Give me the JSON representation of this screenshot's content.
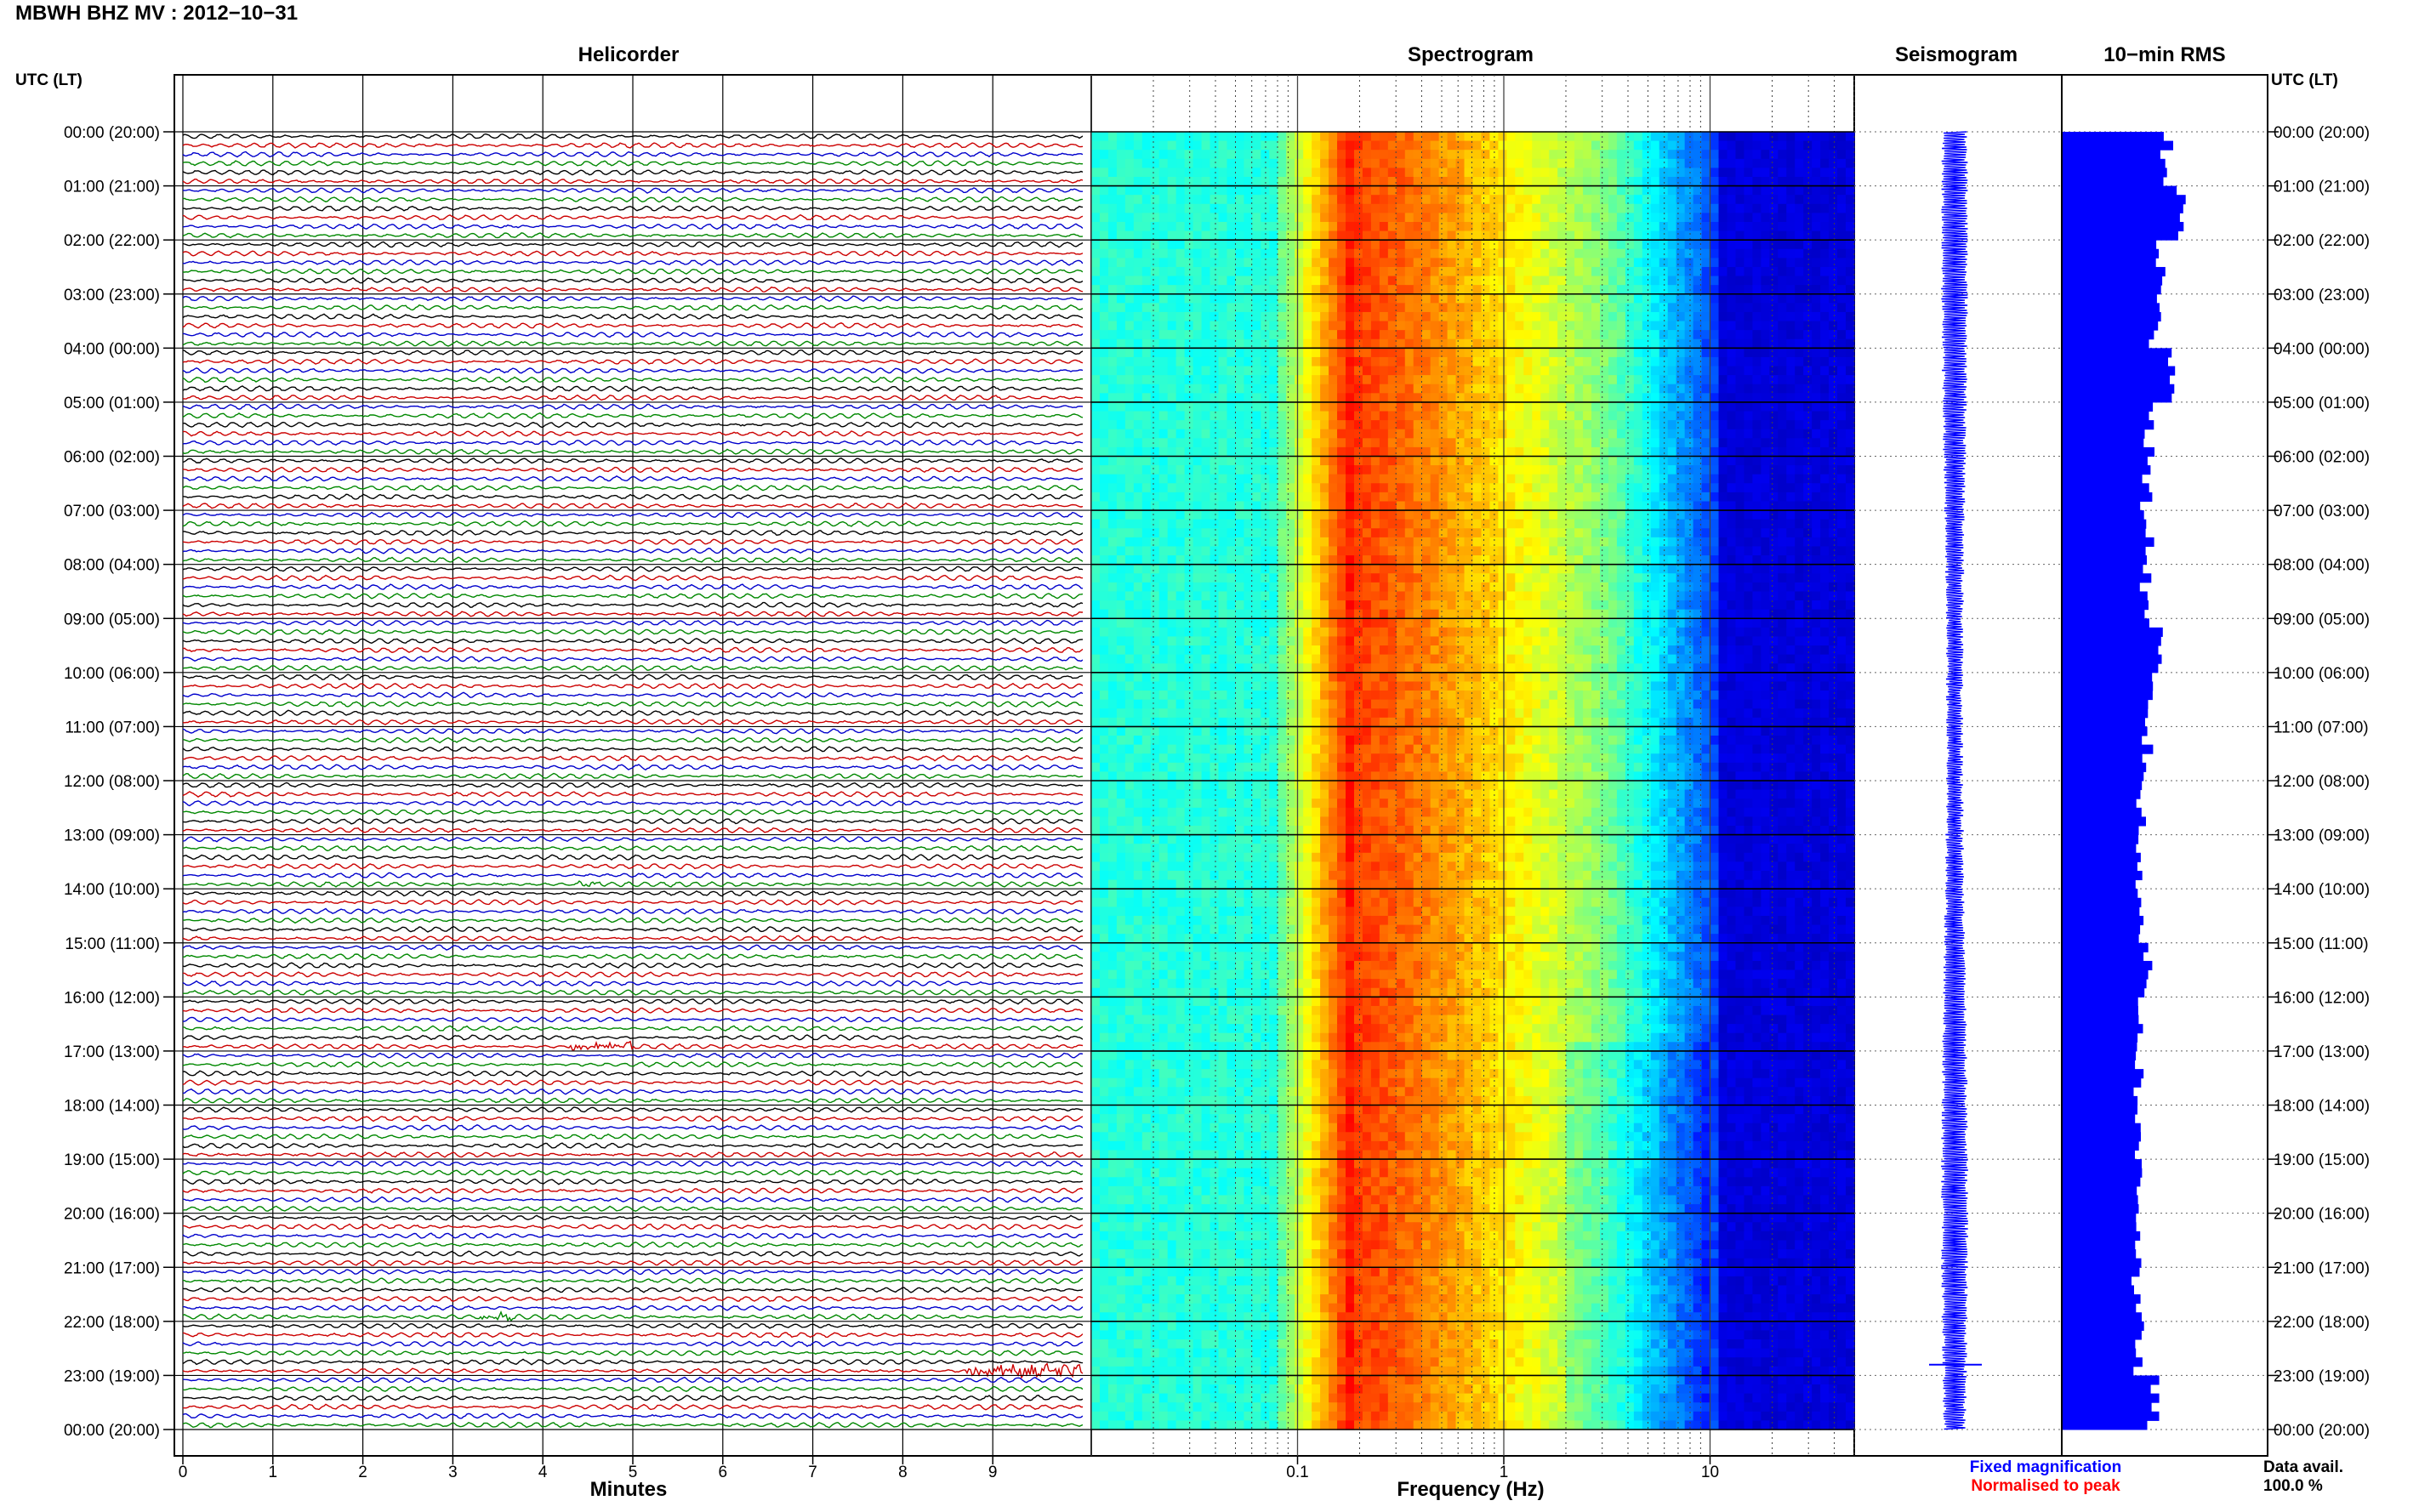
{
  "header": {
    "title": "MBWH BHZ MV : 2012−10−31"
  },
  "panels": {
    "helicorder": "Helicorder",
    "spectrogram": "Spectrogram",
    "seismogram": "Seismogram",
    "rms": "10−min RMS"
  },
  "time_axis_label": "UTC (LT)",
  "footer": {
    "legend_fixed": "Fixed magnification",
    "legend_normalised": "Normalised to peak",
    "data_avail_label": "Data avail.",
    "data_avail_value": "100.0 %"
  },
  "colors": {
    "trace_cycle": [
      "#000000",
      "#cc0000",
      "#0000cc",
      "#008800"
    ],
    "legend_fixed": "#0000ff",
    "legend_normalised": "#ff0000",
    "rms_bar": "#0000ff",
    "seismogram": "#0000ff"
  },
  "chart_data": [
    {
      "type": "line",
      "name": "helicorder",
      "title": "Helicorder",
      "xlabel": "Minutes",
      "ylabel": "UTC (LT)",
      "x_ticks": [
        "0",
        "1",
        "2",
        "3",
        "4",
        "5",
        "6",
        "7",
        "8",
        "9"
      ],
      "xlim": [
        0,
        10
      ],
      "rows_per_hour": 6,
      "minutes_per_row": 10,
      "hour_labels": [
        "00:00 (20:00)",
        "01:00 (21:00)",
        "02:00 (22:00)",
        "03:00 (23:00)",
        "04:00 (00:00)",
        "05:00 (01:00)",
        "06:00 (02:00)",
        "07:00 (03:00)",
        "08:00 (04:00)",
        "09:00 (05:00)",
        "10:00 (06:00)",
        "11:00 (07:00)",
        "12:00 (08:00)",
        "13:00 (09:00)",
        "14:00 (10:00)",
        "15:00 (11:00)",
        "16:00 (12:00)",
        "17:00 (13:00)",
        "18:00 (14:00)",
        "19:00 (15:00)",
        "20:00 (16:00)",
        "21:00 (17:00)",
        "22:00 (18:00)",
        "23:00 (19:00)",
        "00:00 (20:00)"
      ],
      "grid": true,
      "events": [
        {
          "hour": 13,
          "minute": 4.4,
          "duration_min": 0.3,
          "amplitude": "small"
        },
        {
          "hour": 16,
          "minute": 4.3,
          "duration_min": 0.7,
          "amplitude": "medium"
        },
        {
          "hour": 21,
          "minute": 3.3,
          "duration_min": 0.4,
          "amplitude": "small"
        },
        {
          "hour": 22,
          "minute": 8.7,
          "duration_min": 1.3,
          "amplitude": "large"
        }
      ]
    },
    {
      "type": "heatmap",
      "name": "spectrogram",
      "title": "Spectrogram",
      "xlabel": "Frequency (Hz)",
      "x_scale": "log",
      "xlim": [
        0.01,
        50
      ],
      "x_ticks": [
        "0.1",
        "1",
        "10"
      ],
      "colormap": "jet",
      "peak_band_hz": [
        0.13,
        0.3
      ],
      "rolloff_hz": [
        3,
        20
      ]
    },
    {
      "type": "line",
      "name": "seismogram",
      "title": "Seismogram",
      "amplitude": "fixed"
    },
    {
      "type": "bar",
      "name": "rms",
      "title": "10−min RMS",
      "orientation": "horizontal",
      "rows": 144,
      "values_by_hour": [
        1.05,
        1.2,
        1.0,
        0.95,
        1.15,
        0.9,
        0.85,
        0.88,
        0.85,
        0.95,
        0.88,
        0.86,
        0.8,
        0.78,
        0.83,
        0.85,
        0.8,
        0.78,
        0.76,
        0.8,
        0.78,
        0.75,
        0.78,
        0.92
      ]
    }
  ]
}
